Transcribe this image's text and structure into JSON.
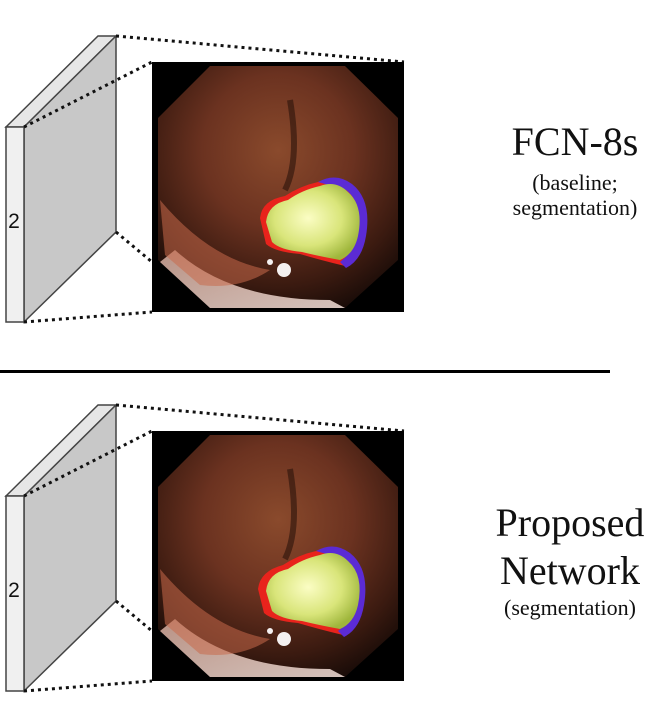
{
  "panels": [
    {
      "layer_label": "2",
      "title_lines": [
        "FCN-8s"
      ],
      "subtitle_lines": [
        "(baseline;",
        "segmentation)"
      ]
    },
    {
      "layer_label": "2",
      "title_lines": [
        "Proposed",
        "Network"
      ],
      "subtitle_lines": [
        "(segmentation)"
      ]
    }
  ],
  "colors": {
    "feature_map_face": "#c8c8c8",
    "feature_map_edge": "#e6e6e6",
    "image_background": "#000000",
    "tissue": "#7a3f26",
    "polyp_fill": "#e8ee8a",
    "overlay_red": "#e8231c",
    "overlay_blue": "#5b2bd4"
  },
  "icons": {
    "feature_map": "feature-map-slab",
    "connector": "dotted-projection-lines"
  }
}
